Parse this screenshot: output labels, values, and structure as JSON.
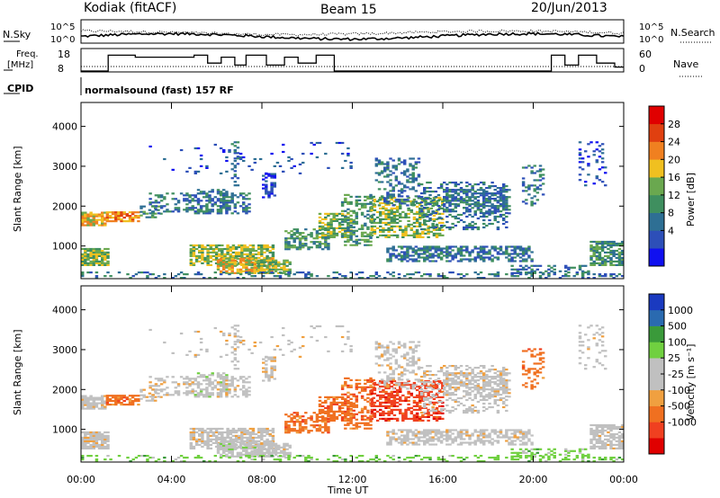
{
  "header": {
    "station": "Kodiak (fitACF)",
    "beam": "Beam 15",
    "date": "20/Jun/2013"
  },
  "top_panels": {
    "nsky_label": "N.Sky",
    "nsky_ticks": [
      "10^5",
      "10^0"
    ],
    "nsearch_label": "N.Search",
    "nsearch_ticks": [
      "10^5",
      "10^0"
    ],
    "freq_label": "Freq.",
    "freq_unit": "[MHz]",
    "freq_ticks": [
      "18",
      "8"
    ],
    "nave_label": "Nave",
    "nave_ticks": [
      "60",
      "0"
    ],
    "cpid_label": "CPID",
    "cpid_text": "normalsound (fast) 157 RF"
  },
  "colors": {
    "power": [
      "#1010f0",
      "#2d4fb8",
      "#2e6f94",
      "#3f8f5f",
      "#6aa84f",
      "#f0c020",
      "#f08020",
      "#e04010",
      "#e00000"
    ],
    "velocity": [
      "#e00000",
      "#f04020",
      "#f07020",
      "#f0a040",
      "#c0c0c0",
      "#c0c0c0",
      "#70d040",
      "#3a9a3a",
      "#2a6ab0",
      "#1a3ac0"
    ]
  },
  "chart_data": [
    {
      "type": "heatmap",
      "name": "power",
      "ylabel": "Slant Range [km]",
      "y_ticks": [
        "4000",
        "3000",
        "2000",
        "1000"
      ],
      "y_tick_values": [
        4000,
        3000,
        2000,
        1000
      ],
      "ylim": [
        180,
        4600
      ],
      "colorbar_label": "Power [dB]",
      "colorbar_ticks": [
        "28",
        "24",
        "20",
        "16",
        "12",
        "8",
        "4"
      ],
      "clim": [
        0,
        32
      ]
    },
    {
      "type": "heatmap",
      "name": "velocity",
      "ylabel": "Slant Range [km]",
      "y_ticks": [
        "4000",
        "3000",
        "2000",
        "1000"
      ],
      "y_tick_values": [
        4000,
        3000,
        2000,
        1000
      ],
      "ylim": [
        180,
        4600
      ],
      "colorbar_label": "Velocity [m s⁻¹]",
      "colorbar_ticks": [
        "1000",
        "500",
        "100",
        "25",
        "-25",
        "-100",
        "-500",
        "-1000"
      ]
    }
  ],
  "xaxis": {
    "label": "Time UT",
    "ticks": [
      "00:00",
      "04:00",
      "08:00",
      "12:00",
      "16:00",
      "20:00",
      "00:00"
    ],
    "xlim_hours": [
      0,
      24
    ]
  },
  "freq_series_hours": [
    0,
    1.2,
    1.2,
    2.4,
    2.4,
    5.0,
    5.0,
    5.6,
    5.6,
    6.2,
    6.2,
    6.8,
    6.8,
    7.3,
    7.3,
    8.2,
    8.2,
    9.0,
    9.0,
    9.6,
    9.6,
    10.4,
    10.4,
    11.2,
    11.2,
    20.8,
    20.8,
    21.4,
    21.4,
    22.0,
    22.0,
    22.8,
    22.8,
    23.6,
    23.6,
    24
  ],
  "freq_series_values": [
    8,
    8,
    16,
    16,
    15,
    15,
    16,
    16,
    12,
    12,
    15,
    15,
    11,
    11,
    16,
    16,
    11,
    11,
    15,
    15,
    12,
    12,
    16,
    16,
    8,
    8,
    16,
    16,
    11,
    11,
    16,
    16,
    12,
    12,
    10,
    10
  ]
}
